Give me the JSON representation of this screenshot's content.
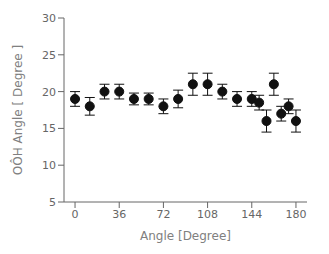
{
  "chart_data": {
    "type": "scatter",
    "xlabel": "Angle [Degree]",
    "ylabel": "OÔH Angle [ Degree ]",
    "x": [
      0,
      12,
      24,
      36,
      48,
      60,
      72,
      84,
      96,
      108,
      120,
      132,
      144,
      150,
      156,
      162,
      168,
      174,
      180
    ],
    "values": [
      19.0,
      18.0,
      20.0,
      20.0,
      19.0,
      19.0,
      18.0,
      19.0,
      21.0,
      21.0,
      20.0,
      19.0,
      19.0,
      18.5,
      16.0,
      21.0,
      17.0,
      18.0,
      16.0
    ],
    "yerr": [
      1.0,
      1.2,
      1.0,
      1.0,
      0.8,
      0.8,
      1.0,
      1.2,
      1.5,
      1.5,
      1.0,
      1.0,
      1.0,
      1.0,
      1.5,
      1.5,
      1.0,
      1.0,
      1.5
    ],
    "color": "#111111",
    "marker": "circle",
    "xlim": [
      -9,
      189
    ],
    "ylim": [
      5,
      30
    ],
    "xticks": [
      0,
      36,
      72,
      108,
      144,
      180
    ],
    "yticks": [
      5,
      10,
      15,
      20,
      25,
      30
    ],
    "grid": false
  }
}
